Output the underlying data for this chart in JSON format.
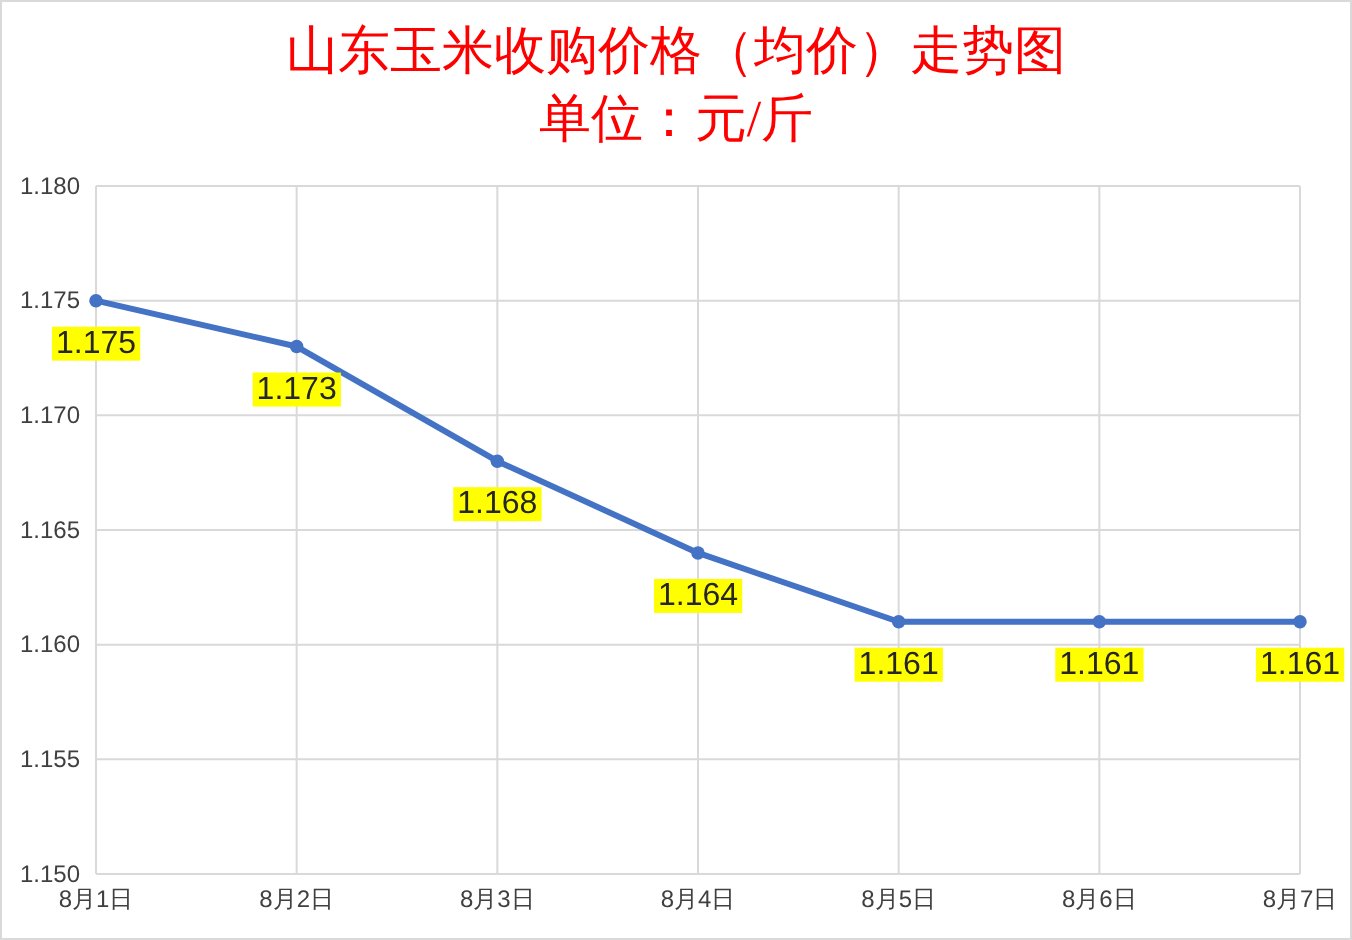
{
  "chart_data": {
    "type": "line",
    "title": "山东玉米收购价格（均价）走势图",
    "subtitle": "单位：元/斤",
    "categories": [
      "8月1日",
      "8月2日",
      "8月3日",
      "8月4日",
      "8月5日",
      "8月6日",
      "8月7日"
    ],
    "series": [
      {
        "color": "#4472c4",
        "values": [
          1.175,
          1.173,
          1.168,
          1.164,
          1.161,
          1.161,
          1.161
        ]
      }
    ],
    "ylim": [
      1.15,
      1.18
    ],
    "yticks": [
      {
        "value": 1.15,
        "label": "1.150"
      },
      {
        "value": 1.155,
        "label": "1.155"
      },
      {
        "value": 1.16,
        "label": "1.160"
      },
      {
        "value": 1.165,
        "label": "1.165"
      },
      {
        "value": 1.17,
        "label": "1.170"
      },
      {
        "value": 1.175,
        "label": "1.175"
      },
      {
        "value": 1.18,
        "label": "1.180"
      }
    ],
    "grid": true,
    "data_labels": true,
    "marker": "circle",
    "line_style": "solid"
  }
}
